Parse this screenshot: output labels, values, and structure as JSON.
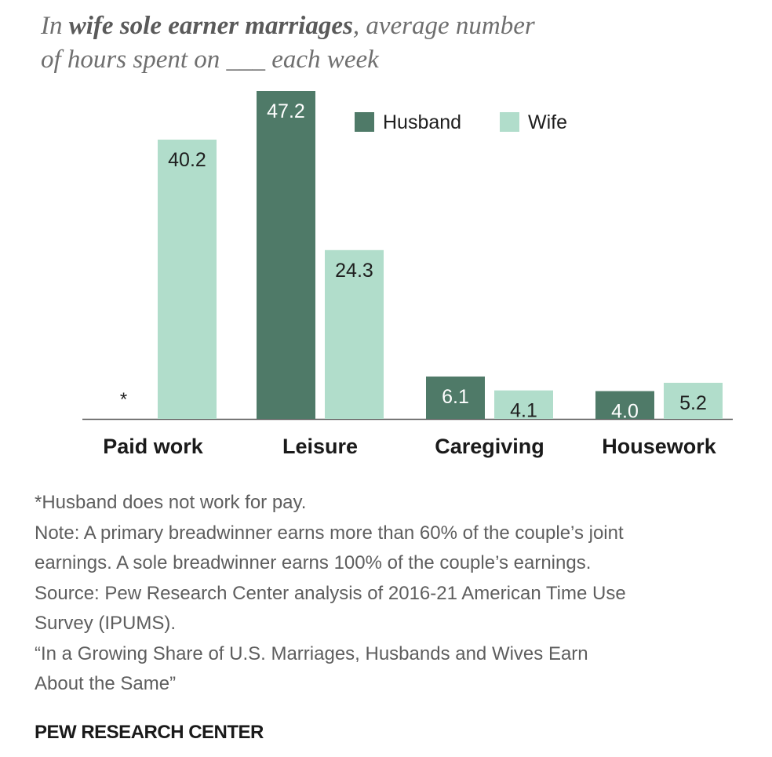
{
  "title": {
    "prefix": "In ",
    "emphasis": "wife sole earner marriages",
    "rest": ", average number",
    "line2": "of hours spent on ___ each week"
  },
  "colors": {
    "husband": "#4f7a68",
    "wife": "#b1ddcb",
    "axis": "#555555"
  },
  "chart_data": {
    "type": "bar",
    "categories": [
      "Paid work",
      "Leisure",
      "Caregiving",
      "Housework"
    ],
    "series": [
      {
        "name": "Husband",
        "values": [
          null,
          47.2,
          6.1,
          4.0
        ],
        "labels": [
          "*",
          "47.2",
          "6.1",
          "4.0"
        ]
      },
      {
        "name": "Wife",
        "values": [
          40.2,
          24.3,
          4.1,
          5.2
        ],
        "labels": [
          "40.2",
          "24.3",
          "4.1",
          "5.2"
        ]
      }
    ],
    "ylim": [
      0,
      47.2
    ],
    "legend": "top-right",
    "grid": false
  },
  "notes": [
    "*Husband does not work for pay.",
    "Note: A primary breadwinner earns more than 60% of the couple’s joint",
    "earnings. A sole breadwinner earns 100% of the couple’s earnings.",
    "Source: Pew Research Center analysis of 2016-21 American Time Use",
    "Survey (IPUMS).",
    "“In a Growing Share of U.S. Marriages, Husbands and Wives Earn",
    "About the Same”"
  ],
  "brand": "PEW RESEARCH CENTER"
}
